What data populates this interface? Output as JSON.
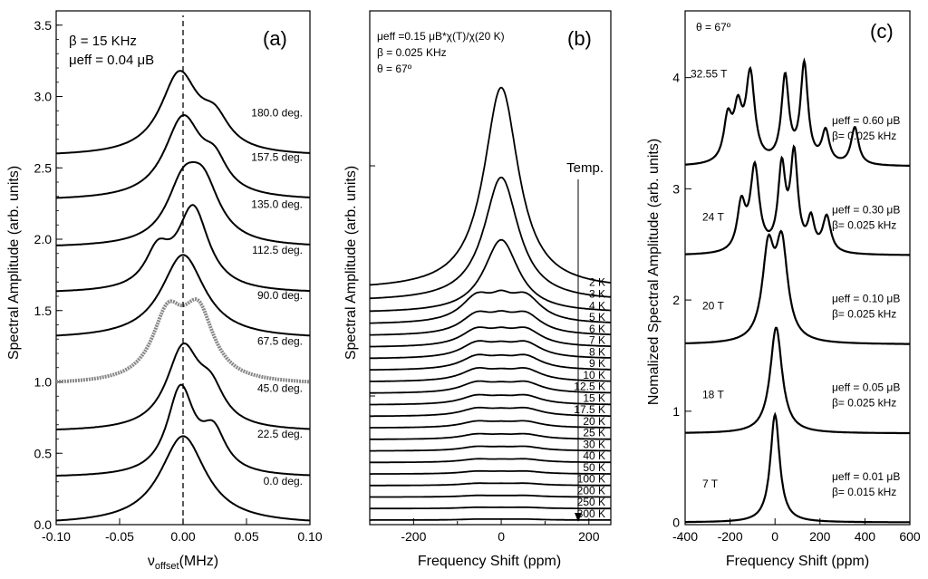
{
  "figure": {
    "panels": [
      "a",
      "b",
      "c"
    ]
  },
  "chart_data": [
    {
      "type": "line",
      "panel_label": "(a)",
      "xlabel_main": "ν",
      "xlabel_sub": "offset",
      "xlabel_unit": "(MHz)",
      "ylabel": "Spectral Amplitude (arb. units)",
      "xlim": [
        -0.1,
        0.1
      ],
      "ylim": [
        0.0,
        3.6
      ],
      "xticks": [
        "-0.10",
        "-0.05",
        "0.00",
        "0.05",
        "0.10"
      ],
      "yticks": [
        "0.0",
        "0.5",
        "1.0",
        "1.5",
        "2.0",
        "2.5",
        "3.0",
        "3.5"
      ],
      "info_lines": [
        "β = 15 KHz",
        "μeff = 0.04 μB"
      ],
      "dashed_line_x": 0.0,
      "series": [
        {
          "name": "0.0 deg.",
          "baseline": 0.0,
          "peak": 0.62,
          "shape": [
            [
              0.0,
              0.62,
              0.022
            ]
          ]
        },
        {
          "name": "22.5 deg.",
          "baseline": 0.33,
          "peak": 0.98,
          "shape": [
            [
              -0.002,
              0.55,
              0.013
            ],
            [
              0.024,
              0.25,
              0.012
            ]
          ]
        },
        {
          "name": "45.0 deg.",
          "baseline": 0.65,
          "peak": 1.27,
          "shape": [
            [
              0.0,
              0.5,
              0.016
            ],
            [
              0.022,
              0.2,
              0.013
            ]
          ]
        },
        {
          "name": "67.5 deg.",
          "baseline": 0.98,
          "peak": 1.58,
          "shape": [
            [
              -0.012,
              0.4,
              0.015
            ],
            [
              0.012,
              0.42,
              0.015
            ]
          ]
        },
        {
          "name": "90.0 deg.",
          "baseline": 1.3,
          "peak": 1.89,
          "shape": [
            [
              0.0,
              0.59,
              0.021
            ]
          ]
        },
        {
          "name": "112.5 deg.",
          "baseline": 1.62,
          "peak": 2.24,
          "shape": [
            [
              -0.02,
              0.22,
              0.012
            ],
            [
              0.008,
              0.52,
              0.015
            ]
          ]
        },
        {
          "name": "135.0 deg.",
          "baseline": 1.94,
          "peak": 2.54,
          "shape": [
            [
              0.0,
              0.35,
              0.016
            ],
            [
              0.016,
              0.35,
              0.016
            ]
          ]
        },
        {
          "name": "157.5 deg.",
          "baseline": 2.27,
          "peak": 2.87,
          "shape": [
            [
              0.0,
              0.5,
              0.018
            ],
            [
              0.025,
              0.17,
              0.012
            ]
          ]
        },
        {
          "name": "180.0 deg.",
          "baseline": 2.58,
          "peak": 3.18,
          "shape": [
            [
              -0.003,
              0.5,
              0.018
            ],
            [
              0.025,
              0.18,
              0.014
            ]
          ]
        }
      ]
    },
    {
      "type": "line",
      "panel_label": "(b)",
      "xlabel": "Frequency Shift (ppm)",
      "ylabel": "Spectral Amplitude (arb. units)",
      "xlim": [
        -300,
        250
      ],
      "xticks": [
        "-200",
        "0",
        "200"
      ],
      "info_lines": [
        "μeff =0.15 μB*χ(T)/χ(20 K)",
        "β = 0.025 KHz",
        "θ = 67º"
      ],
      "legend_title": "Temp.",
      "series": [
        {
          "name": "2 K",
          "peak": 31.0
        },
        {
          "name": "3 K",
          "peak": 19.0
        },
        {
          "name": "4 K",
          "peak": 11.2
        },
        {
          "name": "5 K",
          "peak": 9.0
        },
        {
          "name": "6 K",
          "peak": 7.0
        },
        {
          "name": "7 K",
          "peak": 5.8
        },
        {
          "name": "8 K",
          "peak": 5.2
        },
        {
          "name": "9 K",
          "peak": 4.6
        },
        {
          "name": "10 K",
          "peak": 4.1
        },
        {
          "name": "12.5 K",
          "peak": 3.6
        },
        {
          "name": "15 K",
          "peak": 3.0
        },
        {
          "name": "17.5 K",
          "peak": 2.6
        },
        {
          "name": "20 K",
          "peak": 2.1
        },
        {
          "name": "25 K",
          "peak": 1.7
        },
        {
          "name": "30 K",
          "peak": 1.4
        },
        {
          "name": "40 K",
          "peak": 1.1
        },
        {
          "name": "50 K",
          "peak": 0.9
        },
        {
          "name": "100 K",
          "peak": 0.7
        },
        {
          "name": "200 K",
          "peak": 0.5
        },
        {
          "name": "250 K",
          "peak": 0.4
        },
        {
          "name": "300 K",
          "peak": 0.3
        }
      ]
    },
    {
      "type": "line",
      "panel_label": "(c)",
      "xlabel": "Frequency Shift (ppm)",
      "ylabel": "Nomalized Spectral Amplitude (arb. units)",
      "xlim": [
        -400,
        600
      ],
      "ylim": [
        -0.02,
        4.6
      ],
      "xticks": [
        "-400",
        "-200",
        "0",
        "200",
        "400",
        "600"
      ],
      "yticks": [
        "0",
        "1",
        "2",
        "3",
        "4"
      ],
      "info_lines": [
        "θ = 67º"
      ],
      "series": [
        {
          "name": "7 T",
          "mu": "μeff = 0.01 μB",
          "beta": "β= 0.015 kHz",
          "baseline": 0.0,
          "peak": 0.97,
          "shape": [
            [
              0,
              0.97,
              25
            ]
          ]
        },
        {
          "name": "18 T",
          "mu": "μeff = 0.05 μB",
          "beta": "β= 0.025 kHz",
          "baseline": 0.8,
          "peak": 1.75,
          "shape": [
            [
              5,
              0.95,
              32
            ]
          ]
        },
        {
          "name": "20 T",
          "mu": "μeff = 0.10 μB",
          "beta": "β= 0.025 kHz",
          "baseline": 1.6,
          "peak": 2.62,
          "shape": [
            [
              -30,
              0.93,
              32
            ],
            [
              30,
              0.98,
              32
            ]
          ]
        },
        {
          "name": "24 T",
          "mu": "μeff = 0.30 μB",
          "beta": "β= 0.025 kHz",
          "baseline": 2.4,
          "peak": 3.38,
          "shape": [
            [
              -150,
              0.45,
              22
            ],
            [
              -90,
              0.82,
              24
            ],
            [
              30,
              0.8,
              20
            ],
            [
              85,
              0.93,
              20
            ],
            [
              160,
              0.3,
              18
            ],
            [
              230,
              0.35,
              22
            ]
          ]
        },
        {
          "name": "32.55 T",
          "mu": "μeff = 0.60 μB",
          "beta": "β= 0.025 kHz",
          "baseline": 3.2,
          "peak": 4.15,
          "shape": [
            [
              -210,
              0.4,
              22
            ],
            [
              -165,
              0.45,
              22
            ],
            [
              -110,
              0.82,
              24
            ],
            [
              45,
              0.8,
              20
            ],
            [
              130,
              0.92,
              20
            ],
            [
              225,
              0.3,
              20
            ],
            [
              355,
              0.35,
              20
            ]
          ]
        }
      ]
    }
  ]
}
